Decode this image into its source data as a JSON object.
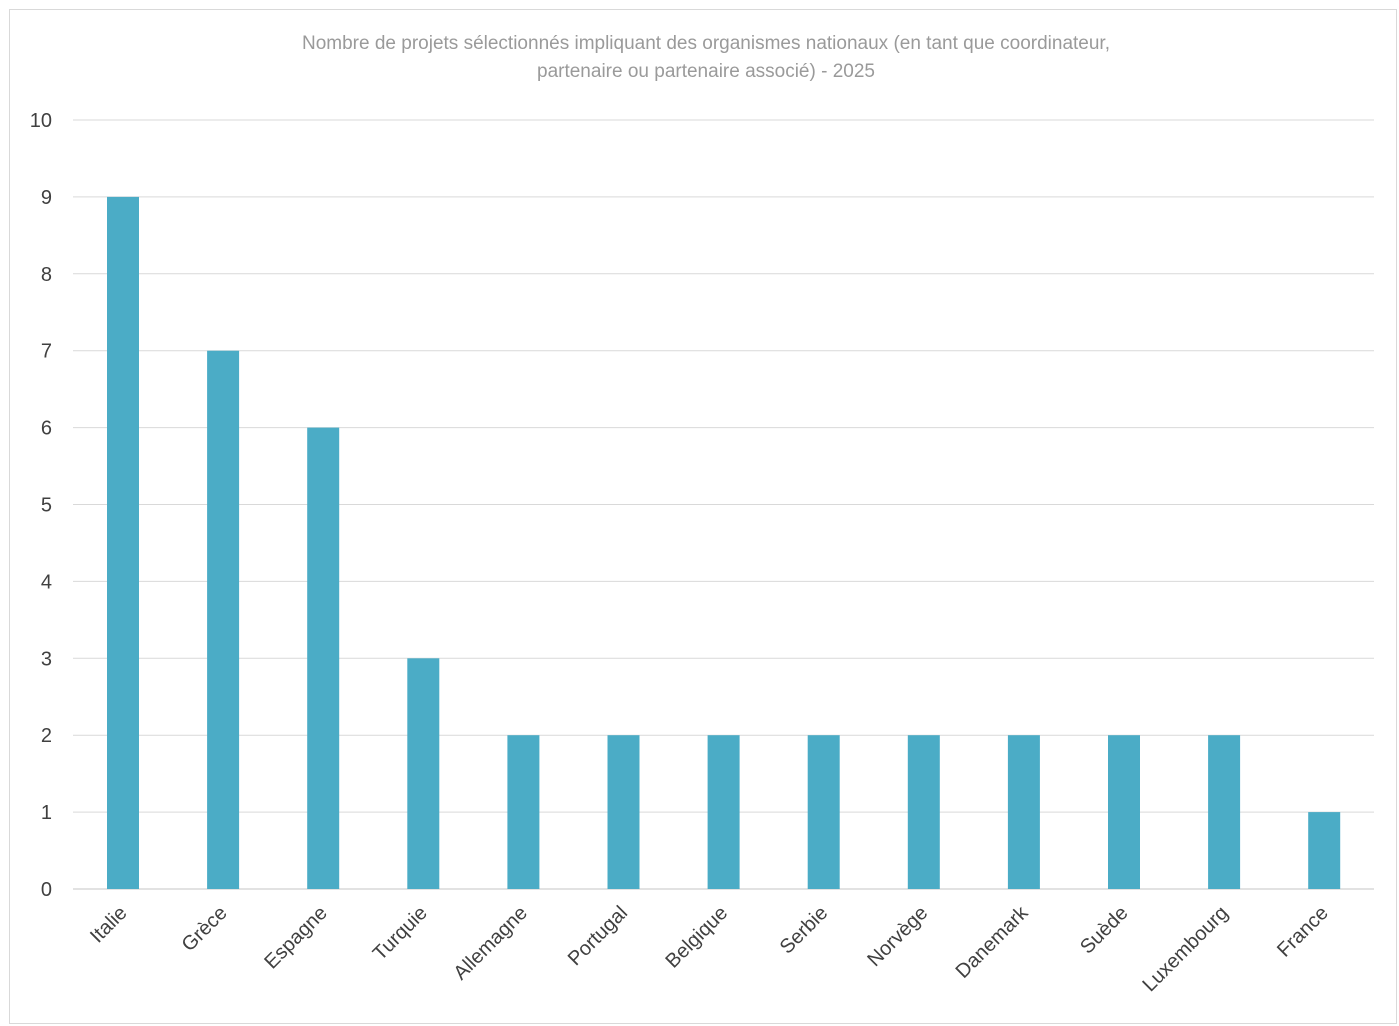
{
  "chart_data": {
    "type": "bar",
    "title_lines": [
      "Nombre de projets sélectionnés impliquant des organismes nationaux (en tant que coordinateur,",
      "partenaire ou partenaire associé) - 2025"
    ],
    "categories": [
      "Italie",
      "Grèce",
      "Espagne",
      "Turquie",
      "Allemagne",
      "Portugal",
      "Belgique",
      "Serbie",
      "Norvège",
      "Danemark",
      "Suède",
      "Luxembourg",
      "France"
    ],
    "values": [
      9,
      7,
      6,
      3,
      2,
      2,
      2,
      2,
      2,
      2,
      2,
      2,
      1
    ],
    "xlabel": "",
    "ylabel": "",
    "ylim": [
      0,
      10
    ],
    "yticks": [
      0,
      1,
      2,
      3,
      4,
      5,
      6,
      7,
      8,
      9,
      10
    ],
    "grid": true,
    "legend": "none",
    "colors": {
      "bar": "#4BACC6",
      "grid": "#d9d9d9",
      "title": "#9a9a9a",
      "axis_text": "#404040"
    }
  }
}
